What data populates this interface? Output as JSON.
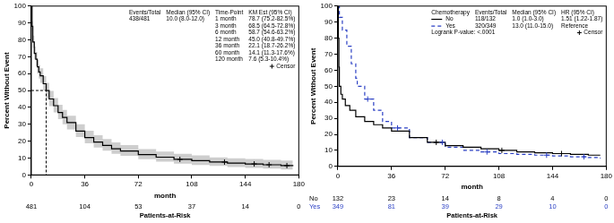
{
  "chart_data": [
    {
      "type": "step",
      "x_label": "month",
      "y_label": "Percent Without Event",
      "xlim": [
        0,
        180
      ],
      "ylim": [
        0,
        100
      ],
      "xticks": [
        0,
        36,
        72,
        108,
        144,
        180
      ],
      "yticks": [
        0,
        10,
        20,
        30,
        40,
        50,
        60,
        70,
        80,
        90,
        100
      ],
      "grid": false,
      "legend": "upper right",
      "censor_label": "Censor",
      "median_line": {
        "x": 10,
        "y": 50
      },
      "summary": {
        "header": [
          "Events/Total",
          "Median (95% CI)"
        ],
        "row": [
          "438/481",
          "10.0 (8.0-12.0)"
        ]
      },
      "timepoints": {
        "header": [
          "Time-Point",
          "KM Est (95% CI)"
        ],
        "rows": [
          [
            "1 month",
            "78.7 (75.2-82.5%)"
          ],
          [
            "3 month",
            "68.5 (64.5-72.8%)"
          ],
          [
            "6 month",
            "58.7 (54.6-63.2%)"
          ],
          [
            "12 month",
            "45.0 (40.8-49.7%)"
          ],
          [
            "36 month",
            "22.1 (18.7-26.2%)"
          ],
          [
            "60 month",
            "14.1 (11.3-17.6%)"
          ],
          [
            "120 month",
            "7.6 (5.3-10.4%)"
          ]
        ]
      },
      "at_risk_title": "Patients-at-Risk",
      "at_risk_x": [
        0,
        36,
        72,
        108,
        144,
        180
      ],
      "series": [
        {
          "color": "#000000",
          "line_style": "solid",
          "marker": "plus",
          "x": [
            0,
            0.5,
            1,
            2,
            3,
            4,
            5,
            6,
            8,
            10,
            12,
            15,
            18,
            21,
            24,
            30,
            36,
            42,
            48,
            54,
            60,
            72,
            84,
            96,
            108,
            120,
            132,
            144,
            156,
            168,
            176
          ],
          "values": [
            100,
            88,
            78.7,
            72,
            68.5,
            64,
            61,
            58.7,
            54,
            50,
            45,
            41,
            37,
            34,
            31,
            26,
            22.1,
            19.5,
            17.5,
            15.5,
            14.1,
            12,
            10.5,
            9.2,
            8.4,
            7.6,
            7,
            6.5,
            6,
            5.5,
            5.2
          ],
          "ci_lower": [
            100,
            85,
            75.2,
            68.5,
            64.5,
            60,
            57,
            54.6,
            50,
            45.5,
            40.8,
            37,
            33,
            30,
            27,
            22.5,
            18.7,
            16.2,
            14.3,
            12.5,
            11.3,
            9.3,
            7.9,
            6.7,
            5.9,
            5.3,
            4.7,
            4.2,
            3.7,
            3.2,
            2.8
          ],
          "ci_upper": [
            100,
            91,
            82.5,
            76,
            72.8,
            68,
            65,
            63.2,
            58.5,
            54.5,
            49.7,
            45.5,
            41.5,
            38.5,
            35,
            30,
            26.2,
            23.5,
            21.3,
            19.2,
            17.6,
            15.3,
            13.8,
            12.5,
            11.6,
            10.4,
            9.9,
            9.4,
            8.9,
            8.5,
            8.2
          ],
          "censor_x": [
            100,
            130,
            150,
            160,
            172
          ],
          "censor_values": [
            9.2,
            7.6,
            6.5,
            6,
            5.5
          ],
          "at_risk": [
            481,
            104,
            53,
            37,
            14,
            0
          ]
        }
      ]
    },
    {
      "type": "step",
      "x_label": "month",
      "y_label": "Percent Without Event",
      "xlim": [
        0,
        180
      ],
      "ylim": [
        0,
        100
      ],
      "xticks": [
        0,
        36,
        72,
        108,
        144,
        180
      ],
      "yticks": [
        0,
        10,
        20,
        30,
        40,
        50,
        60,
        70,
        80,
        90,
        100
      ],
      "grid": false,
      "legend": "upper right",
      "censor_label": "Censor",
      "legend_table": {
        "header": [
          "Chemotherapy",
          "Events/Total",
          "Median (95% CI)",
          "HR (95% CI)"
        ],
        "rows": [
          [
            "118/132",
            "1.0 (1.0-3.0)",
            "1.51 (1.22-1.87)"
          ],
          [
            "320/349",
            "13.0 (11.0-15.0)",
            "Reference"
          ]
        ]
      },
      "annotation": "Logrank P-value: <.0001",
      "at_risk_title": "Patients-at-Risk",
      "at_risk_x": [
        0,
        36,
        72,
        108,
        144,
        180
      ],
      "series": [
        {
          "name": "No",
          "color": "#000000",
          "line_style": "solid",
          "marker": "plus",
          "x": [
            0,
            0.3,
            0.7,
            1,
            2,
            3,
            5,
            8,
            12,
            18,
            24,
            30,
            36,
            48,
            60,
            72,
            84,
            96,
            108,
            120,
            132,
            144,
            156,
            168,
            176
          ],
          "values": [
            100,
            80,
            62,
            50,
            45,
            42,
            38,
            35,
            31,
            28,
            26,
            24,
            22,
            18,
            15,
            13,
            12,
            11,
            10,
            9,
            8.5,
            8,
            7.5,
            7,
            7
          ],
          "censor_x": [
            66,
            110,
            150
          ],
          "censor_values": [
            15,
            10,
            8
          ],
          "at_risk": [
            132,
            23,
            14,
            8,
            4,
            0
          ]
        },
        {
          "name": "Yes",
          "color": "#2a3fc4",
          "line_style": "dashed",
          "marker": "plus",
          "x": [
            0,
            1,
            3,
            6,
            9,
            12,
            13,
            18,
            24,
            30,
            36,
            48,
            60,
            72,
            84,
            96,
            108,
            120,
            132,
            144,
            156,
            168,
            176
          ],
          "values": [
            100,
            93,
            85,
            75,
            64,
            55,
            50,
            42,
            35,
            28,
            24,
            18,
            15,
            12,
            10,
            9,
            8,
            7.5,
            7,
            6.5,
            6,
            5.5,
            5
          ],
          "censor_x": [
            20,
            40,
            70,
            100,
            140,
            165
          ],
          "censor_values": [
            42,
            24,
            15,
            9,
            7,
            6
          ],
          "at_risk": [
            349,
            81,
            39,
            29,
            10,
            0
          ]
        }
      ]
    }
  ]
}
